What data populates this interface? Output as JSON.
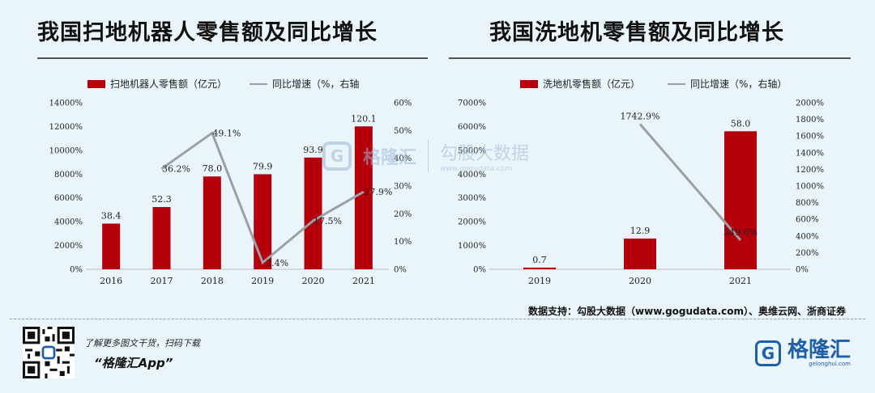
{
  "chart_data": [
    {
      "type": "bar",
      "title": "我国扫地机器人零售额及同比增长",
      "categories": [
        "2016",
        "2017",
        "2018",
        "2019",
        "2020",
        "2021"
      ],
      "series": [
        {
          "name": "扫地机器人零售额（亿元）",
          "type": "bar",
          "axis": "left",
          "values": [
            38.4,
            52.3,
            78.0,
            79.9,
            93.9,
            120.1
          ],
          "labels": [
            "38.4",
            "52.3",
            "78.0",
            "79.9",
            "93.9",
            "120.1"
          ]
        },
        {
          "name": "同比增速（%，右轴",
          "type": "line",
          "axis": "right",
          "values": [
            null,
            36.2,
            49.1,
            2.4,
            17.5,
            27.9
          ],
          "labels": [
            "",
            "36.2%",
            "49.1%",
            "2.4%",
            "17.5%",
            "27.9%"
          ]
        }
      ],
      "ylim_left": [
        0,
        14000
      ],
      "ylim_right": [
        0,
        60
      ],
      "yticks_left": [
        "0%",
        "2000%",
        "4000%",
        "6000%",
        "8000%",
        "10000%",
        "12000%",
        "14000%"
      ],
      "yticks_right": [
        "0%",
        "10%",
        "20%",
        "30%",
        "40%",
        "50%",
        "60%"
      ],
      "legend": "top",
      "grid": false
    },
    {
      "type": "bar",
      "title": "我国洗地机零售额及同比增长",
      "categories": [
        "2019",
        "2020",
        "2021"
      ],
      "series": [
        {
          "name": "洗地机零售额（亿元）",
          "type": "bar",
          "axis": "left",
          "values": [
            0.7,
            12.9,
            58.0
          ],
          "labels": [
            "0.7",
            "12.9",
            "58.0"
          ]
        },
        {
          "name": "同比增速（%，右轴）",
          "type": "line",
          "axis": "right",
          "values": [
            null,
            1742.9,
            349.6
          ],
          "labels": [
            "",
            "1742.9%",
            "349.6%"
          ]
        }
      ],
      "ylim_left": [
        0,
        7000
      ],
      "ylim_right": [
        0,
        2000
      ],
      "yticks_left": [
        "0%",
        "1000%",
        "2000%",
        "3000%",
        "4000%",
        "5000%",
        "6000%",
        "7000%"
      ],
      "yticks_right": [
        "0%",
        "200%",
        "400%",
        "600%",
        "800%",
        "1000%",
        "1200%",
        "1400%",
        "1600%",
        "1800%",
        "2000%"
      ],
      "legend": "top",
      "grid": false
    }
  ],
  "footer": {
    "source": "数据支持：勾股大数据（www.gogudata.com）、奥维云网、浙商证券",
    "promo_line1": "了解更多图文干货，扫码下载",
    "promo_line2": "“格隆汇App”",
    "brand": "格隆汇",
    "brand_sub": "gelonghui.com"
  },
  "watermark": {
    "brand": "格隆汇",
    "partner": "勾股大数据",
    "partner_sub": "www.gogudata.com"
  },
  "colors": {
    "bar": "#b5000b",
    "line": "#9aa0a6",
    "background": "#eaf5fb",
    "brand": "#1f5fa8"
  }
}
